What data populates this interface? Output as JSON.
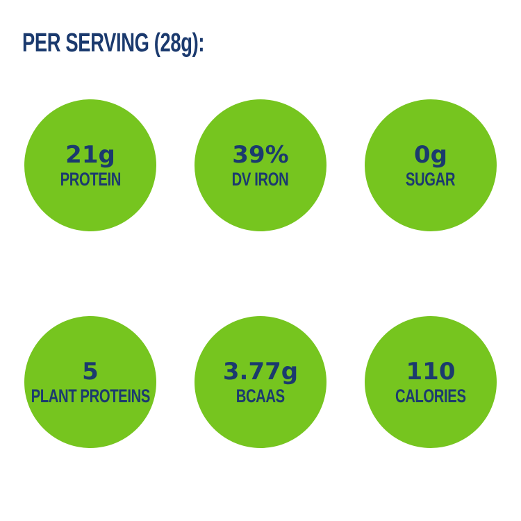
{
  "title": "PER SERVING (28g):",
  "colors": {
    "circle_green": "#76C51F",
    "text_navy": "#1B3A6E",
    "background": "#FFFFFF"
  },
  "stats": [
    {
      "value": "21g",
      "label": "PROTEIN"
    },
    {
      "value": "39%",
      "label": "DV IRON"
    },
    {
      "value": "0g",
      "label": "SUGAR"
    },
    {
      "value": "5",
      "label": "PLANT PROTEINS"
    },
    {
      "value": "3.77g",
      "label": "BCAAS"
    },
    {
      "value": "110",
      "label": "CALORIES"
    }
  ]
}
